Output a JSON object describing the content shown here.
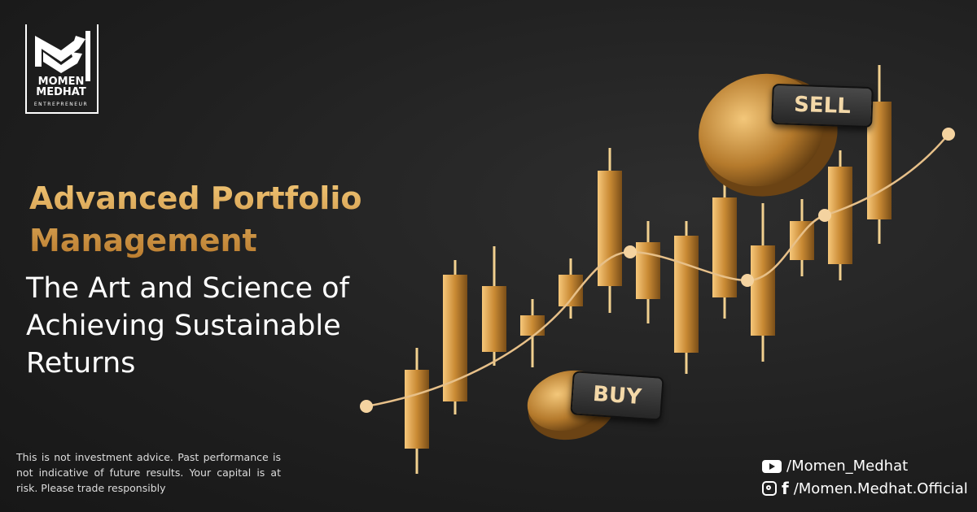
{
  "logo": {
    "line1": "MOMEN",
    "line2": "MEDHAT",
    "subtitle": "ENTREPRENEUR"
  },
  "headline": {
    "line1": "Advanced Portfolio",
    "line2": "Management"
  },
  "subheadline": {
    "line1": "The Art and Science of",
    "line2": "Achieving Sustainable",
    "line3": "Returns"
  },
  "disclaimer": "This is not investment advice. Past performance is not indicative of future results. Your capital is at risk. Please trade responsibly",
  "illustration": {
    "sell_label": "SELL",
    "buy_label": "BUY"
  },
  "social": {
    "youtube": {
      "icon": "youtube-icon",
      "handle": "/Momen_Medhat"
    },
    "instagram_facebook": {
      "icons": [
        "instagram-icon",
        "facebook-icon"
      ],
      "handle": "/Momen.Medhat.Official"
    }
  },
  "colors": {
    "gold": "#d9a04a",
    "background": "#1f1f1f",
    "text": "#ffffff"
  }
}
